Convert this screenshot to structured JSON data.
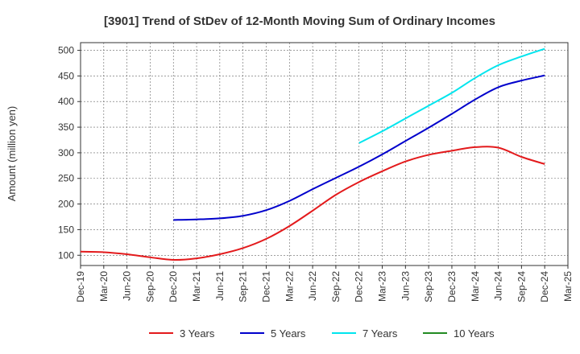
{
  "chart_data": {
    "type": "line",
    "title": "[3901]  Trend of StDev of 12-Month Moving Sum of Ordinary Incomes",
    "ylabel": "Amount (million yen)",
    "xlabel": "",
    "ylim": [
      80,
      515
    ],
    "yticks": [
      100,
      150,
      200,
      250,
      300,
      350,
      400,
      450,
      500
    ],
    "xticks": [
      "Dec-19",
      "Mar-20",
      "Jun-20",
      "Sep-20",
      "Dec-20",
      "Mar-21",
      "Jun-21",
      "Sep-21",
      "Dec-21",
      "Mar-22",
      "Jun-22",
      "Sep-22",
      "Dec-22",
      "Mar-23",
      "Jun-23",
      "Sep-23",
      "Dec-23",
      "Mar-24",
      "Jun-24",
      "Sep-24",
      "Dec-24",
      "Mar-25"
    ],
    "grid": true,
    "legend_position": "bottom",
    "series": [
      {
        "name": "3 Years",
        "color": "#e31a1c",
        "x": [
          "Dec-19",
          "Mar-20",
          "Jun-20",
          "Sep-20",
          "Dec-20",
          "Mar-21",
          "Jun-21",
          "Sep-21",
          "Dec-21",
          "Mar-22",
          "Jun-22",
          "Sep-22",
          "Dec-22",
          "Mar-23",
          "Jun-23",
          "Sep-23",
          "Dec-23",
          "Mar-24",
          "Jun-24",
          "Sep-24",
          "Dec-24"
        ],
        "values": [
          107,
          106,
          102,
          96,
          91,
          94,
          102,
          114,
          132,
          157,
          187,
          218,
          243,
          264,
          283,
          296,
          304,
          311,
          310,
          292,
          278
        ]
      },
      {
        "name": "5 Years",
        "color": "#0000cc",
        "x": [
          "Dec-20",
          "Mar-21",
          "Jun-21",
          "Sep-21",
          "Dec-21",
          "Mar-22",
          "Jun-22",
          "Sep-22",
          "Dec-22",
          "Mar-23",
          "Jun-23",
          "Sep-23",
          "Dec-23",
          "Mar-24",
          "Jun-24",
          "Sep-24",
          "Dec-24"
        ],
        "values": [
          169,
          170,
          172,
          177,
          188,
          206,
          229,
          251,
          273,
          297,
          323,
          349,
          376,
          404,
          428,
          441,
          451
        ]
      },
      {
        "name": "7 Years",
        "color": "#00e5ee",
        "x": [
          "Dec-22",
          "Mar-23",
          "Jun-23",
          "Sep-23",
          "Dec-23",
          "Mar-24",
          "Jun-24",
          "Sep-24",
          "Dec-24"
        ],
        "values": [
          319,
          342,
          367,
          392,
          417,
          446,
          471,
          488,
          503
        ]
      },
      {
        "name": "10 Years",
        "color": "#228b22",
        "x": [],
        "values": []
      }
    ]
  }
}
